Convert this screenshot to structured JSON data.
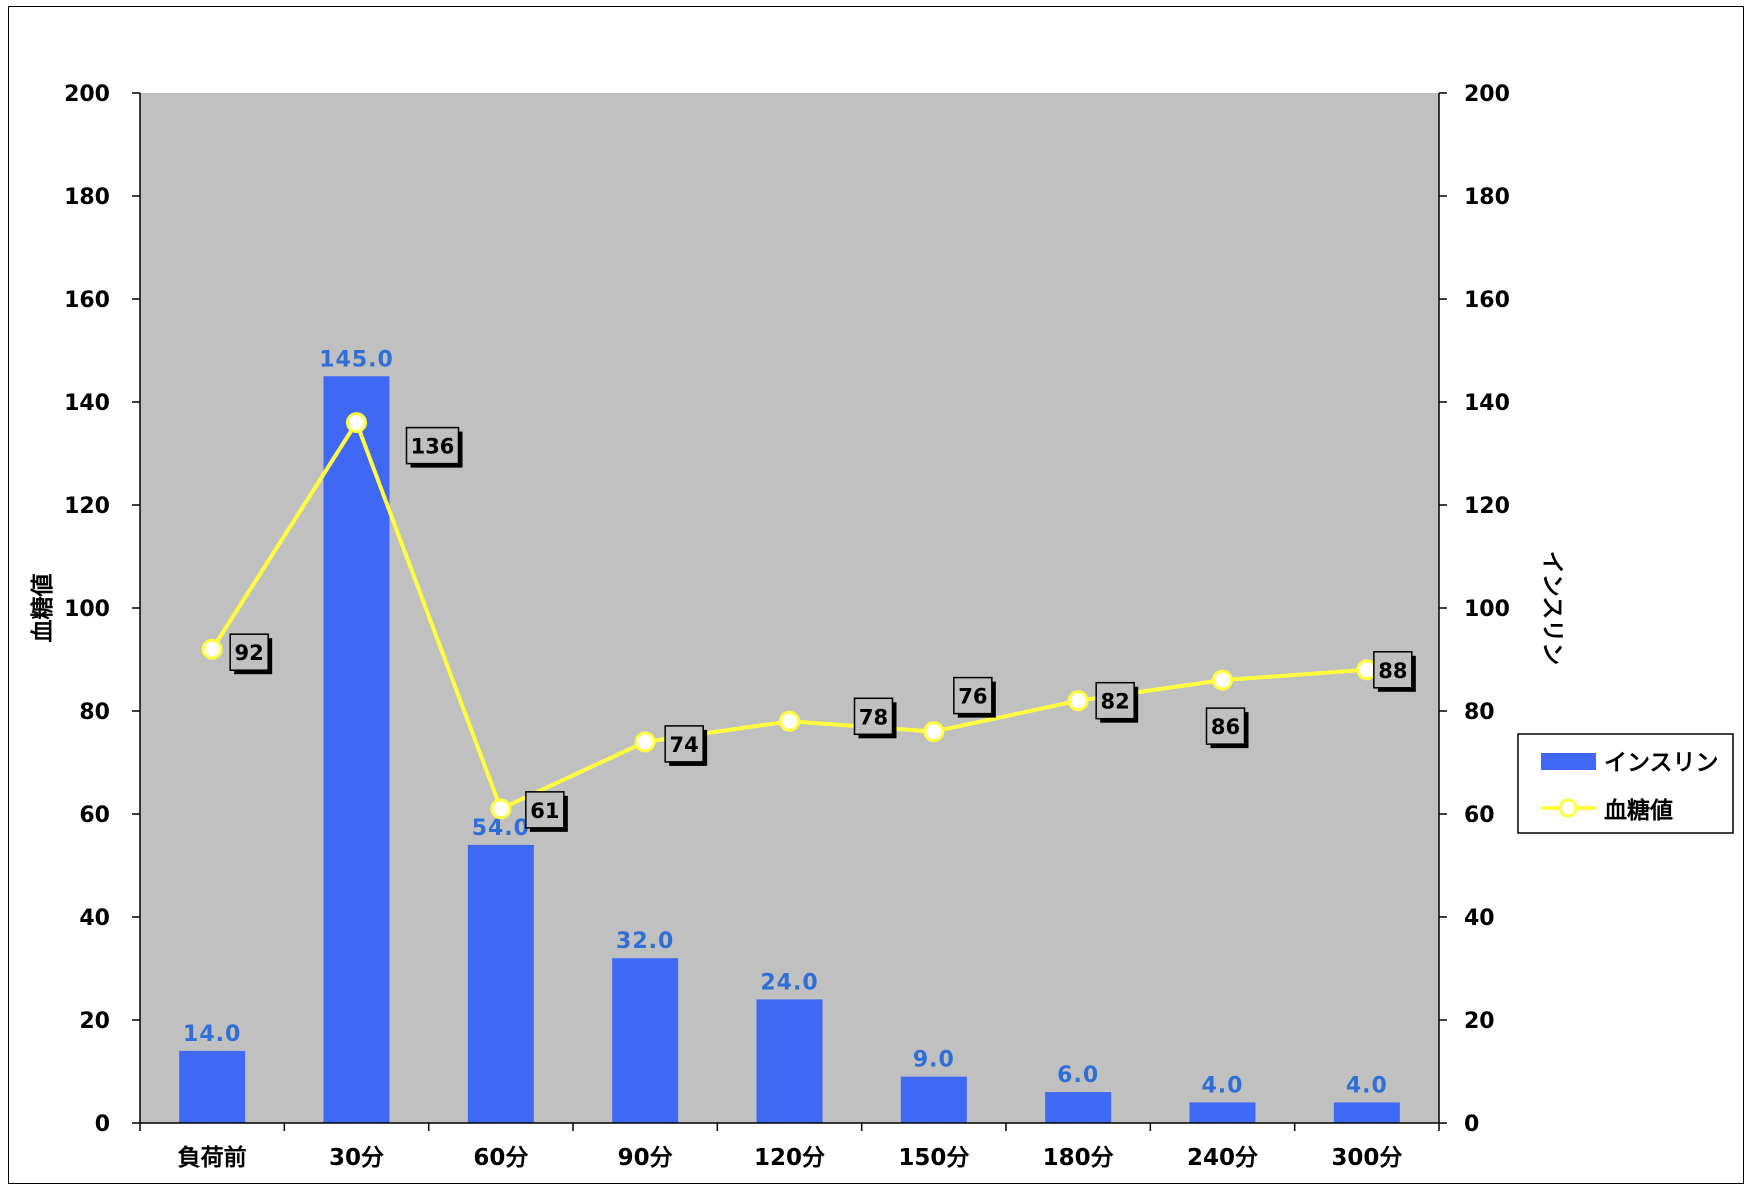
{
  "chart_data": {
    "type": "bar",
    "categories": [
      "負荷前",
      "30分",
      "60分",
      "90分",
      "120分",
      "150分",
      "180分",
      "240分",
      "300分"
    ],
    "series": [
      {
        "name": "インスリン",
        "type": "bar",
        "axis": "right",
        "values": [
          14.0,
          145.0,
          54.0,
          32.0,
          24.0,
          9.0,
          6.0,
          4.0,
          4.0
        ],
        "labels": [
          "14.0",
          "145.0",
          "54.0",
          "32.0",
          "24.0",
          "9.0",
          "6.0",
          "4.0",
          "4.0"
        ]
      },
      {
        "name": "血糖値",
        "type": "line",
        "axis": "left",
        "values": [
          92,
          136,
          61,
          74,
          78,
          76,
          82,
          86,
          88
        ],
        "labels": [
          "92",
          "136",
          "61",
          "74",
          "78",
          "76",
          "82",
          "86",
          "88"
        ]
      }
    ],
    "y_left": {
      "label": "血糖値",
      "ylim": [
        0,
        200
      ],
      "ticks": [
        "0",
        "20",
        "40",
        "60",
        "80",
        "100",
        "120",
        "140",
        "160",
        "180",
        "200"
      ]
    },
    "y_right": {
      "label": "インスリン",
      "ylim": [
        0,
        200
      ],
      "ticks": [
        "0",
        "20",
        "40",
        "60",
        "80",
        "100",
        "120",
        "140",
        "160",
        "180",
        "200"
      ]
    },
    "grid": false,
    "legend_position": "right",
    "colors": {
      "bar": "#3f68f5",
      "line": "#ffff40",
      "plot_bg": "#c0c0c0",
      "bar_label": "#2f6fd6"
    }
  }
}
